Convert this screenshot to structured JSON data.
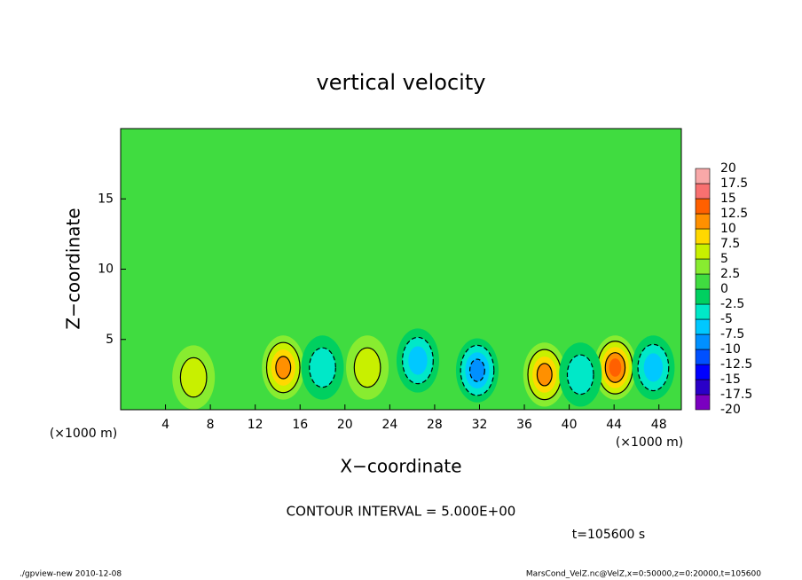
{
  "chart_data": {
    "type": "contour",
    "title": "vertical velocity",
    "x_label": "X−coordinate",
    "y_label": "Z−coordinate",
    "x_unit": "(×1000 m)",
    "xlim": [
      0,
      50
    ],
    "xticks": [
      4,
      8,
      12,
      16,
      20,
      24,
      28,
      32,
      36,
      40,
      44,
      48
    ],
    "ylim": [
      0,
      20
    ],
    "yticks": [
      5,
      10,
      15
    ],
    "colorbar": {
      "levels": [
        -20,
        -17.5,
        -15,
        -12.5,
        -10,
        -7.5,
        -5,
        -2.5,
        0,
        2.5,
        5,
        7.5,
        10,
        12.5,
        15,
        17.5,
        20
      ],
      "colors": [
        "#7a00c0",
        "#2a00c8",
        "#0000ff",
        "#0050ff",
        "#0090ff",
        "#00c8ff",
        "#00e8c8",
        "#00d060",
        "#40dc40",
        "#88ec30",
        "#c8f000",
        "#ffd800",
        "#ff9000",
        "#ff6000",
        "#f87070",
        "#f8a8a8"
      ]
    },
    "background_value": 1,
    "cells": [
      {
        "x": 14.5,
        "z": 3,
        "value": 12
      },
      {
        "x": 37.8,
        "z": 2.5,
        "value": 12
      },
      {
        "x": 44.1,
        "z": 3,
        "value": 13
      },
      {
        "x": 31.8,
        "z": 2.8,
        "value": -10
      },
      {
        "x": 26.5,
        "z": 3.5,
        "value": -6
      },
      {
        "x": 47.5,
        "z": 3,
        "value": -7
      },
      {
        "x": 6.5,
        "z": 2.3,
        "value": 6
      },
      {
        "x": 22,
        "z": 3,
        "value": 5
      },
      {
        "x": 41,
        "z": 2.5,
        "value": -4
      },
      {
        "x": 18,
        "z": 3,
        "value": -3
      }
    ],
    "contour_note": "CONTOUR INTERVAL = 5.000E+00",
    "time_label": "t=105600 s",
    "footer_left": "./gpview-new  2010-12-08",
    "footer_right": "MarsCond_VelZ.nc@VelZ,x=0:50000,z=0:20000,t=105600"
  }
}
